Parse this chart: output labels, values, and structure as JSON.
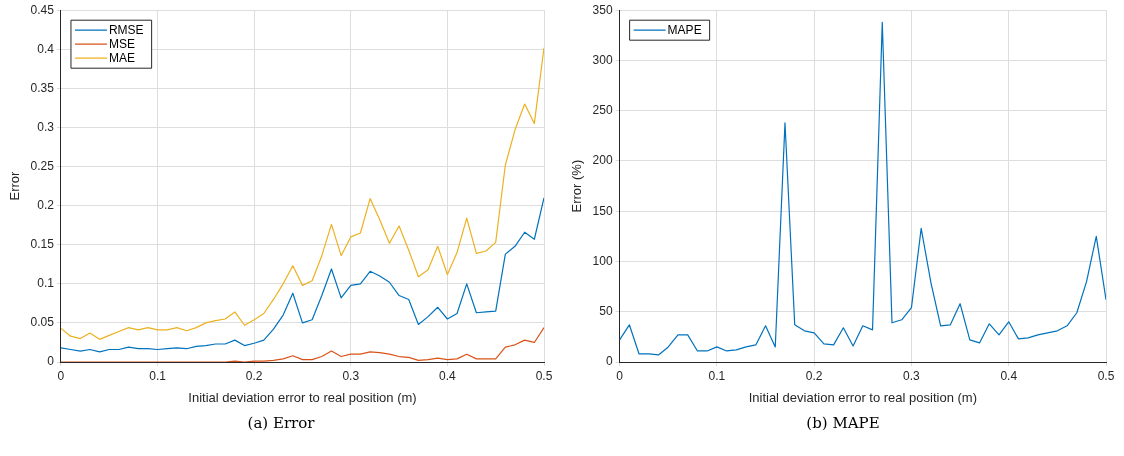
{
  "chart_data": [
    {
      "type": "line",
      "xlabel": "Initial deviation error to real position (m)",
      "ylabel": "Error",
      "annotations": [
        "(a) Error"
      ],
      "x": [
        0,
        0.01,
        0.02,
        0.03,
        0.04,
        0.05,
        0.06,
        0.07,
        0.08,
        0.09,
        0.1,
        0.11,
        0.12,
        0.13,
        0.14,
        0.15,
        0.16,
        0.17,
        0.18,
        0.19,
        0.2,
        0.21,
        0.22,
        0.23,
        0.24,
        0.25,
        0.26,
        0.27,
        0.28,
        0.29,
        0.3,
        0.31,
        0.32,
        0.33,
        0.34,
        0.35,
        0.36,
        0.37,
        0.38,
        0.39,
        0.4,
        0.41,
        0.42,
        0.43,
        0.44,
        0.45,
        0.46,
        0.47,
        0.48,
        0.49,
        0.5
      ],
      "series": [
        {
          "name": "RMSE",
          "color": "#0072bd",
          "values": [
            0.018,
            0.016,
            0.014,
            0.016,
            0.013,
            0.016,
            0.016,
            0.019,
            0.017,
            0.017,
            0.016,
            0.017,
            0.018,
            0.017,
            0.02,
            0.021,
            0.023,
            0.023,
            0.028,
            0.021,
            0.024,
            0.028,
            0.042,
            0.06,
            0.088,
            0.05,
            0.054,
            0.085,
            0.119,
            0.082,
            0.098,
            0.1,
            0.116,
            0.11,
            0.102,
            0.085,
            0.08,
            0.048,
            0.058,
            0.07,
            0.055,
            0.062,
            0.1,
            0.063,
            0.064,
            0.065,
            0.138,
            0.148,
            0.166,
            0.157,
            0.21
          ]
        },
        {
          "name": "MSE",
          "color": "#d95319",
          "values": [
            0,
            0,
            0,
            0,
            0,
            0,
            0,
            0,
            0,
            0,
            0,
            0,
            0,
            0,
            0,
            0,
            0,
            0,
            0.001,
            0,
            0.001,
            0.001,
            0.002,
            0.004,
            0.008,
            0.003,
            0.003,
            0.007,
            0.014,
            0.007,
            0.01,
            0.01,
            0.013,
            0.012,
            0.01,
            0.007,
            0.006,
            0.002,
            0.003,
            0.005,
            0.003,
            0.004,
            0.01,
            0.004,
            0.004,
            0.004,
            0.019,
            0.022,
            0.028,
            0.025,
            0.044
          ]
        },
        {
          "name": "MAE",
          "color": "#edb120",
          "values": [
            0.043,
            0.033,
            0.03,
            0.037,
            0.029,
            0.034,
            0.039,
            0.044,
            0.041,
            0.044,
            0.041,
            0.041,
            0.044,
            0.04,
            0.044,
            0.05,
            0.053,
            0.055,
            0.064,
            0.047,
            0.054,
            0.062,
            0.08,
            0.1,
            0.123,
            0.098,
            0.104,
            0.136,
            0.176,
            0.136,
            0.16,
            0.165,
            0.209,
            0.182,
            0.152,
            0.174,
            0.143,
            0.109,
            0.118,
            0.148,
            0.112,
            0.14,
            0.184,
            0.139,
            0.142,
            0.153,
            0.252,
            0.297,
            0.33,
            0.305,
            0.402
          ]
        }
      ],
      "xlim": [
        0,
        0.5
      ],
      "xticks": [
        0,
        0.1,
        0.2,
        0.3,
        0.4,
        0.5
      ],
      "ylim": [
        0,
        0.45
      ],
      "yticks": [
        0,
        0.05,
        0.1,
        0.15,
        0.2,
        0.25,
        0.3,
        0.35,
        0.4,
        0.45
      ],
      "grid": true,
      "legend": "top left",
      "marker": "none",
      "line_style": "solid"
    },
    {
      "type": "line",
      "xlabel": "Initial deviation error to real position (m)",
      "ylabel": "Error (%)",
      "annotations": [
        "(b) MAPE"
      ],
      "x": [
        0,
        0.01,
        0.02,
        0.03,
        0.04,
        0.05,
        0.06,
        0.07,
        0.08,
        0.09,
        0.1,
        0.11,
        0.12,
        0.13,
        0.14,
        0.15,
        0.16,
        0.17,
        0.18,
        0.19,
        0.2,
        0.21,
        0.22,
        0.23,
        0.24,
        0.25,
        0.26,
        0.27,
        0.28,
        0.29,
        0.3,
        0.31,
        0.32,
        0.33,
        0.34,
        0.35,
        0.36,
        0.37,
        0.38,
        0.39,
        0.4,
        0.41,
        0.42,
        0.43,
        0.44,
        0.45,
        0.46,
        0.47,
        0.48,
        0.49,
        0.5
      ],
      "series": [
        {
          "name": "MAPE",
          "color": "#0072bd",
          "values": [
            22,
            37,
            8,
            8,
            7,
            15,
            27,
            27,
            11,
            11,
            15,
            11,
            12,
            15,
            17,
            36,
            15,
            238,
            37,
            31,
            29,
            18,
            17,
            34,
            16,
            36,
            32,
            338,
            39,
            42,
            54,
            133,
            79,
            36,
            37,
            58,
            22,
            19,
            38,
            27,
            40,
            23,
            24,
            27,
            29,
            31,
            36,
            49,
            80,
            125,
            62
          ]
        }
      ],
      "xlim": [
        0,
        0.5
      ],
      "xticks": [
        0,
        0.1,
        0.2,
        0.3,
        0.4,
        0.5
      ],
      "ylim": [
        0,
        350
      ],
      "yticks": [
        0,
        50,
        100,
        150,
        200,
        250,
        300,
        350
      ],
      "grid": true,
      "legend": "top left",
      "marker": "none",
      "line_style": "solid"
    }
  ]
}
